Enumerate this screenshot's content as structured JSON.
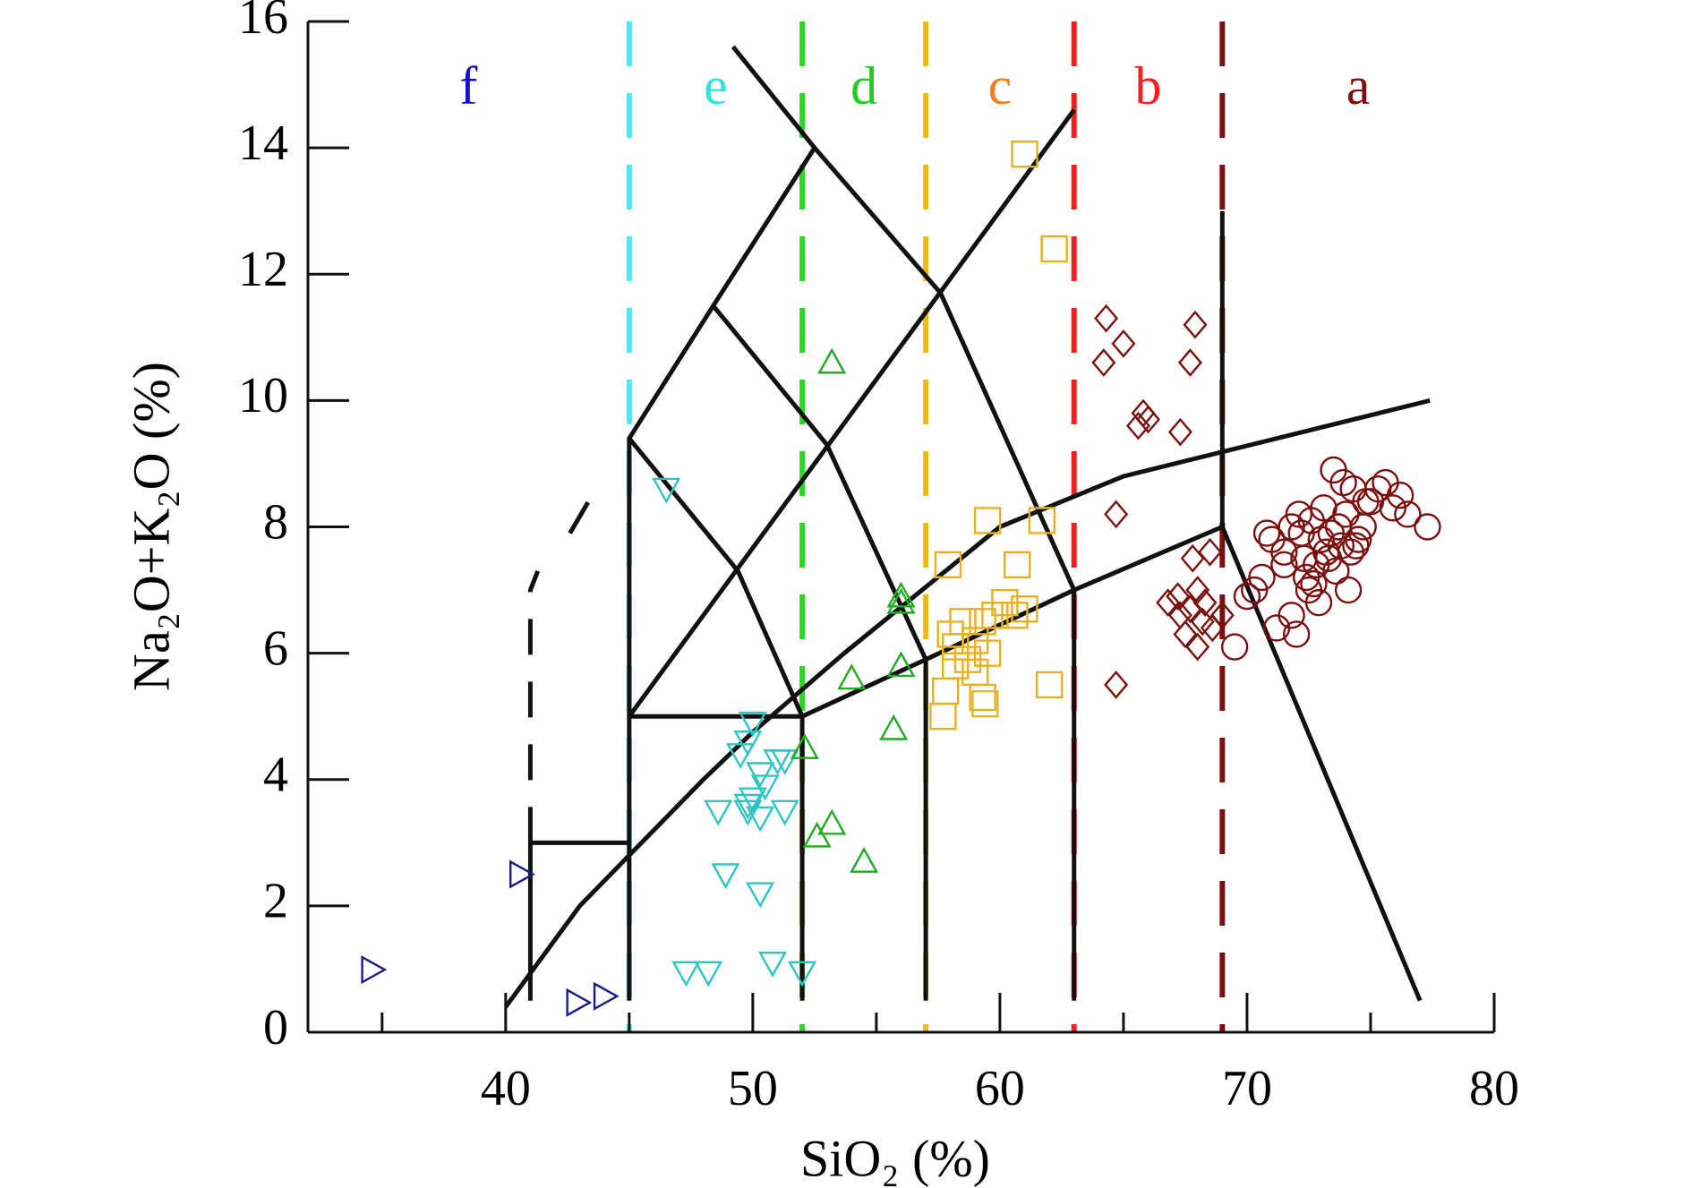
{
  "chart_data": {
    "type": "scatter",
    "xlabel": "SiO₂ (%)",
    "ylabel": "Na₂O+K₂O (%)",
    "xlim": [
      32,
      80
    ],
    "xticks": [
      40,
      50,
      60,
      70,
      80
    ],
    "xticks_minor": [
      35,
      45,
      55,
      65,
      75
    ],
    "ylim": [
      0,
      16
    ],
    "yticks": [
      0,
      2,
      4,
      6,
      8,
      10,
      12,
      14,
      16
    ],
    "divisions": [
      {
        "x": 45,
        "color": "#4ee8f0"
      },
      {
        "x": 52,
        "color": "#22dd22"
      },
      {
        "x": 57,
        "color": "#f0b820"
      },
      {
        "x": 63,
        "color": "#ee2222"
      },
      {
        "x": 69,
        "color": "#7a1010"
      }
    ],
    "fields": [
      {
        "label": "f",
        "color": "#1010cc"
      },
      {
        "label": "e",
        "color": "#33e0e0"
      },
      {
        "label": "d",
        "color": "#22cc22"
      },
      {
        "label": "c",
        "color": "#f08020"
      },
      {
        "label": "b",
        "color": "#ee2222"
      },
      {
        "label": "a",
        "color": "#801010"
      }
    ],
    "boundaries": [
      {
        "style": "solid",
        "x": [
          40,
          43,
          45,
          48,
          50,
          53.7,
          60,
          65,
          77.4
        ],
        "y": [
          0.4,
          2,
          2.8,
          4,
          4.75,
          6,
          8,
          8.8,
          10
        ]
      },
      {
        "style": "solid",
        "x": [
          52,
          57,
          63,
          69,
          77
        ],
        "y": [
          5,
          5.9,
          7,
          8,
          0.5
        ]
      },
      {
        "style": "solid",
        "x": [
          45,
          45,
          52,
          52
        ],
        "y": [
          0.5,
          5,
          5,
          0.5
        ]
      },
      {
        "style": "solid",
        "x": [
          57,
          57
        ],
        "y": [
          5.9,
          0.5
        ]
      },
      {
        "style": "solid",
        "x": [
          63,
          63
        ],
        "y": [
          7,
          0.5
        ]
      },
      {
        "style": "solid",
        "x": [
          69,
          69
        ],
        "y": [
          8,
          13
        ]
      },
      {
        "style": "solid",
        "x": [
          41,
          41,
          45
        ],
        "y": [
          0.5,
          3,
          3
        ]
      },
      {
        "style": "solid",
        "x": [
          45,
          45,
          48.4,
          52.5,
          57.6,
          63
        ],
        "y": [
          5,
          9.4,
          11.5,
          14,
          11.7,
          7
        ]
      },
      {
        "style": "solid",
        "x": [
          45,
          49.4,
          52
        ],
        "y": [
          9.4,
          7.3,
          5
        ]
      },
      {
        "style": "solid",
        "x": [
          45,
          63
        ],
        "y": [
          5,
          14.6
        ]
      },
      {
        "style": "solid",
        "x": [
          48.4,
          53,
          57
        ],
        "y": [
          11.5,
          9.3,
          5.9
        ]
      },
      {
        "style": "solid",
        "x": [
          49.2,
          52.5
        ],
        "y": [
          15.6,
          14
        ]
      },
      {
        "style": "dashed",
        "x": [
          41,
          41,
          41.3
        ],
        "y": [
          3,
          7,
          7.3
        ]
      },
      {
        "style": "dashed",
        "x": [
          42.6,
          43.8
        ],
        "y": [
          7.9,
          8.7
        ]
      }
    ],
    "series": [
      {
        "marker": "triangle-right",
        "color": "#1a1a8c",
        "x": [
          34.6,
          40.6,
          42.9,
          44.0
        ],
        "y": [
          0.99,
          2.5,
          0.47,
          0.57
        ]
      },
      {
        "marker": "triangle-down",
        "color": "#2ec4c4",
        "x": [
          46.5,
          50,
          49.8,
          49.5,
          50.3,
          51,
          51.3,
          50.5,
          50,
          49.8,
          48.6,
          50.3,
          51.3,
          49.8,
          48.9,
          50.3,
          47.3,
          48.2,
          50.8,
          52
        ],
        "y": [
          8.6,
          4.9,
          4.6,
          4.4,
          4.1,
          4.3,
          4.3,
          3.9,
          3.7,
          3.5,
          3.5,
          3.4,
          3.5,
          3.6,
          2.5,
          2.2,
          0.95,
          0.95,
          1.1,
          0.95
        ]
      },
      {
        "marker": "triangle-up",
        "color": "#22aa22",
        "x": [
          53.2,
          56,
          56,
          54,
          56,
          55.7,
          52.1,
          52.6,
          53.2,
          54.5
        ],
        "y": [
          10.6,
          6.9,
          6.8,
          5.6,
          5.8,
          4.8,
          4.5,
          3.1,
          3.3,
          2.7
        ]
      },
      {
        "marker": "square",
        "color": "#e8b020",
        "x": [
          61,
          62.2,
          59.5,
          61.7,
          57.9,
          60.7,
          58,
          58.5,
          59,
          59.3,
          59.8,
          60.2,
          60.6,
          61,
          59.5,
          58.7,
          58.2,
          57.8,
          59.3,
          59.4,
          62,
          57.7,
          59,
          58.2
        ],
        "y": [
          13.9,
          12.4,
          8.1,
          8.1,
          7.4,
          7.4,
          6.3,
          6.5,
          6.2,
          6.5,
          6.6,
          6.8,
          6.6,
          6.7,
          6.0,
          5.9,
          5.8,
          5.4,
          5.3,
          5.2,
          5.5,
          5.0,
          5.7,
          6.1
        ]
      },
      {
        "marker": "diamond",
        "color": "#7a1010",
        "x": [
          64.3,
          65,
          64.2,
          67.9,
          67.7,
          65.8,
          66,
          65.6,
          67.3,
          64.7,
          67.8,
          68.5,
          66.8,
          67.3,
          67.7,
          68,
          68.3,
          67.5,
          68,
          68.6,
          69,
          64.7,
          67.2,
          68.2
        ],
        "y": [
          11.3,
          10.9,
          10.6,
          11.2,
          10.6,
          9.8,
          9.7,
          9.6,
          9.5,
          8.2,
          7.5,
          7.6,
          6.8,
          6.6,
          6.7,
          7.0,
          6.8,
          6.3,
          6.1,
          6.4,
          6.6,
          5.5,
          6.9,
          6.5
        ]
      },
      {
        "marker": "circle",
        "color": "#7a1010",
        "x": [
          69.5,
          70,
          70.3,
          70.8,
          71.2,
          71.5,
          71.8,
          72,
          72.2,
          72.4,
          72.6,
          72.8,
          73,
          73.1,
          73.3,
          73.5,
          73.6,
          73.8,
          74,
          74.1,
          74.3,
          74.5,
          74.7,
          75,
          75.3,
          75.6,
          75.9,
          76.2,
          76.5,
          77.3,
          71.8,
          72.3,
          72.9,
          73.4,
          74.2,
          74.8,
          71.5,
          72.1,
          73.7,
          70.6,
          71,
          72.7,
          73.2,
          73.9,
          72.5,
          74.4
        ],
        "y": [
          6.1,
          6.9,
          7.0,
          7.9,
          6.4,
          7.6,
          6.6,
          6.3,
          7.9,
          7.2,
          8.1,
          7.4,
          7.8,
          8.3,
          7.5,
          8.9,
          7.3,
          7.7,
          8.2,
          7.0,
          8.6,
          7.8,
          8.0,
          8.4,
          8.6,
          8.7,
          8.3,
          8.5,
          8.2,
          8.0,
          8.0,
          7.5,
          6.8,
          7.9,
          7.6,
          8.4,
          7.4,
          8.2,
          8.0,
          7.2,
          7.8,
          7.1,
          7.6,
          8.7,
          7.0,
          7.7
        ]
      }
    ]
  }
}
